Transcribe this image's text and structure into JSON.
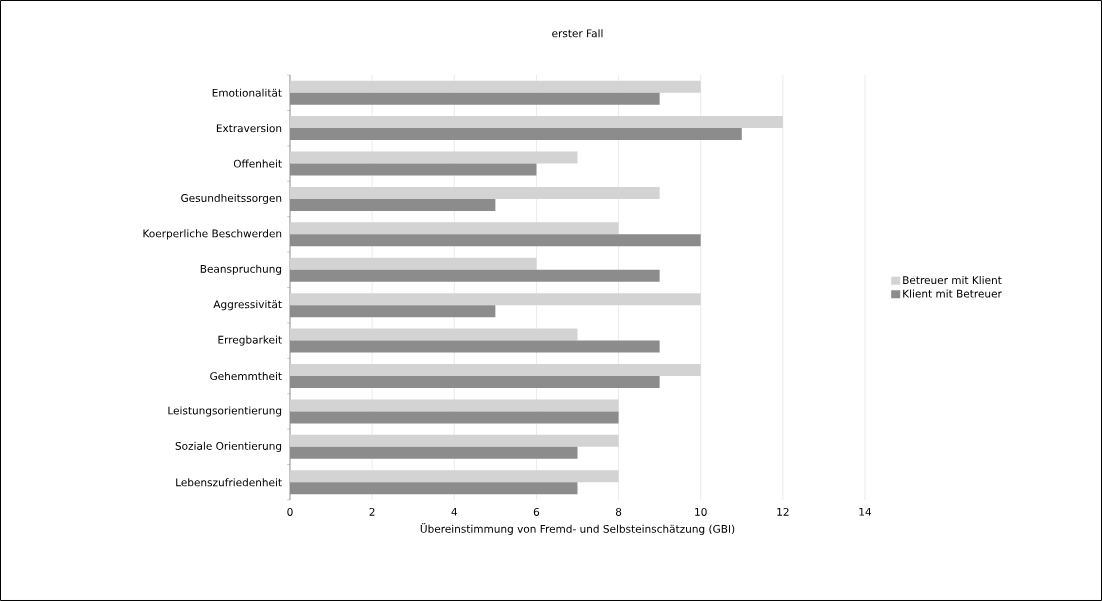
{
  "chart_data": {
    "type": "bar",
    "orientation": "horizontal",
    "title": "erster Fall",
    "xlabel": "Übereinstimmung von Fremd- und Selbsteinschätzung (GBI)",
    "categories": [
      "Emotionalität",
      "Extraversion",
      "Offenheit",
      "Gesundheitssorgen",
      "Koerperliche Beschwerden",
      "Beanspruchung",
      "Aggressivität",
      "Erregbarkeit",
      "Gehemmtheit",
      "Leistungsorientierung",
      "Soziale Orientierung",
      "Lebenszufriedenheit"
    ],
    "series": [
      {
        "name": "Betreuer mit Klient",
        "color": "#d3d3d3",
        "values": [
          10,
          12,
          7,
          9,
          8,
          6,
          10,
          7,
          10,
          8,
          8,
          8
        ]
      },
      {
        "name": "Klient mit Betreuer",
        "color": "#8c8c8c",
        "values": [
          9,
          11,
          6,
          5,
          10,
          9,
          5,
          9,
          9,
          8,
          7,
          7
        ]
      }
    ],
    "xlim": [
      0,
      14
    ],
    "xticks": [
      0,
      2,
      4,
      6,
      8,
      10,
      12,
      14
    ],
    "grid": "x",
    "legend": "right"
  }
}
